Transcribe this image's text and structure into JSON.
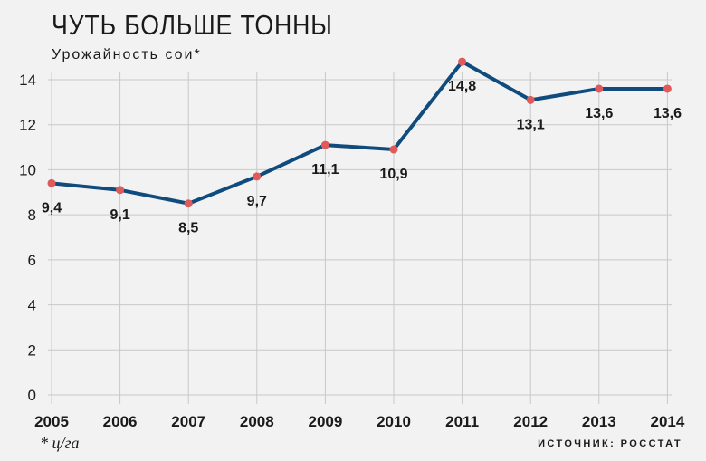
{
  "title": "ЧУТЬ БОЛЬШЕ ТОННЫ",
  "subtitle": "Урожайность сои*",
  "footnote": "* ц/га",
  "source": "ИСТОЧНИК: РОССТАТ",
  "colors": {
    "line": "#0f4c7d",
    "marker": "#e05a5a",
    "grid": "#c8c8c8",
    "background": "#f2f2f2"
  },
  "chart_data": {
    "type": "line",
    "title": "ЧУТЬ БОЛЬШЕ ТОННЫ",
    "subtitle": "Урожайность сои*",
    "x": [
      "2005",
      "2006",
      "2007",
      "2008",
      "2009",
      "2010",
      "2011",
      "2012",
      "2013",
      "2014"
    ],
    "values": [
      9.4,
      9.1,
      8.5,
      9.7,
      11.1,
      10.9,
      14.8,
      13.1,
      13.6,
      13.6
    ],
    "data_labels": [
      "9,4",
      "9,1",
      "8,5",
      "9,7",
      "11,1",
      "10,9",
      "14,8",
      "13,1",
      "13,6",
      "13,6"
    ],
    "yticks": [
      "0",
      "2",
      "4",
      "6",
      "8",
      "10",
      "12",
      "14"
    ],
    "ylim": [
      0,
      14
    ],
    "xlabel": "",
    "ylabel": "",
    "grid": "horizontal and vertical"
  }
}
